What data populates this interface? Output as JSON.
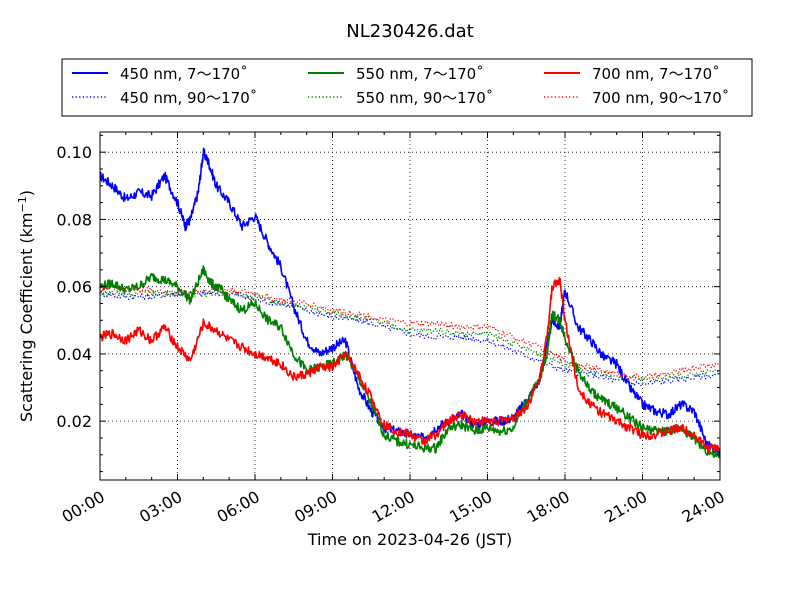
{
  "chart_data": {
    "type": "line",
    "title": "NL230426.dat",
    "xlabel": "Time on 2023-04-26 (JST)",
    "ylabel": "Scattering Coefficient (km",
    "ylabel_sup": "−1",
    "ylabel_close": ")",
    "x_unit": "hours from 00:00 JST",
    "xlim": [
      0,
      24
    ],
    "ylim": [
      0.0025,
      0.106
    ],
    "x_ticks": [
      0,
      3,
      6,
      9,
      12,
      15,
      18,
      21,
      24
    ],
    "x_tick_labels": [
      "00:00",
      "03:00",
      "06:00",
      "09:00",
      "12:00",
      "15:00",
      "18:00",
      "21:00",
      "24:00"
    ],
    "y_ticks": [
      0.02,
      0.04,
      0.06,
      0.08,
      0.1
    ],
    "y_tick_labels": [
      "0.02",
      "0.04",
      "0.06",
      "0.08",
      "0.10"
    ],
    "grid": true,
    "legend_placement": "top, above plot",
    "series": [
      {
        "name": "450 nm, 7～170˚",
        "color": "#0000ff",
        "style": "solid",
        "x": [
          0,
          0.5,
          1,
          1.5,
          2,
          2.5,
          3,
          3.3,
          3.5,
          3.8,
          4.0,
          4.2,
          4.5,
          5,
          5.5,
          6,
          6.5,
          7,
          7.5,
          8,
          8.5,
          9,
          9.5,
          10,
          10.5,
          11,
          11.5,
          12,
          12.5,
          13,
          13.5,
          14,
          14.5,
          15,
          15.5,
          16,
          16.5,
          17,
          17.3,
          17.5,
          17.8,
          18,
          18.5,
          19,
          19.5,
          20,
          20.5,
          21,
          21.5,
          22,
          22.5,
          23,
          23.5,
          24
        ],
        "y": [
          0.093,
          0.09,
          0.086,
          0.088,
          0.087,
          0.093,
          0.085,
          0.078,
          0.08,
          0.088,
          0.1,
          0.097,
          0.09,
          0.085,
          0.078,
          0.081,
          0.073,
          0.066,
          0.054,
          0.044,
          0.04,
          0.042,
          0.044,
          0.03,
          0.023,
          0.018,
          0.017,
          0.016,
          0.015,
          0.018,
          0.02,
          0.022,
          0.019,
          0.02,
          0.02,
          0.021,
          0.026,
          0.032,
          0.042,
          0.05,
          0.048,
          0.059,
          0.048,
          0.044,
          0.039,
          0.037,
          0.03,
          0.025,
          0.023,
          0.022,
          0.025,
          0.023,
          0.013,
          0.011
        ]
      },
      {
        "name": "450 nm, 90～170˚",
        "color": "#0000ff",
        "style": "dotted",
        "x": [
          0,
          1,
          2,
          3,
          4,
          5,
          6,
          7,
          8,
          9,
          10,
          11,
          12,
          13,
          14,
          15,
          16,
          17,
          18,
          19,
          20,
          21,
          22,
          23,
          24
        ],
        "y": [
          0.058,
          0.057,
          0.057,
          0.058,
          0.058,
          0.058,
          0.056,
          0.055,
          0.053,
          0.051,
          0.05,
          0.048,
          0.046,
          0.045,
          0.045,
          0.044,
          0.041,
          0.038,
          0.035,
          0.034,
          0.032,
          0.031,
          0.032,
          0.033,
          0.034
        ]
      },
      {
        "name": "550 nm, 7～170˚",
        "color": "#008000",
        "style": "solid",
        "x": [
          0,
          0.5,
          1,
          1.5,
          2,
          2.5,
          3,
          3.5,
          4.0,
          4.3,
          4.7,
          5,
          5.5,
          6,
          6.5,
          7,
          7.5,
          8,
          8.5,
          9,
          9.5,
          10,
          10.5,
          11,
          11.5,
          12,
          12.5,
          13,
          13.5,
          14,
          14.5,
          15,
          15.5,
          16,
          16.5,
          17,
          17.3,
          17.5,
          17.8,
          18,
          18.5,
          19,
          19.5,
          20,
          20.5,
          21,
          21.5,
          22,
          22.5,
          23,
          23.5,
          24
        ],
        "y": [
          0.06,
          0.061,
          0.059,
          0.06,
          0.063,
          0.062,
          0.06,
          0.056,
          0.065,
          0.061,
          0.059,
          0.056,
          0.053,
          0.055,
          0.05,
          0.048,
          0.04,
          0.035,
          0.036,
          0.037,
          0.04,
          0.033,
          0.025,
          0.016,
          0.014,
          0.013,
          0.012,
          0.012,
          0.018,
          0.019,
          0.017,
          0.018,
          0.017,
          0.018,
          0.026,
          0.032,
          0.04,
          0.052,
          0.05,
          0.045,
          0.035,
          0.029,
          0.026,
          0.024,
          0.021,
          0.018,
          0.017,
          0.017,
          0.018,
          0.015,
          0.011,
          0.009
        ]
      },
      {
        "name": "550 nm, 90～170˚",
        "color": "#008000",
        "style": "dotted",
        "x": [
          0,
          1,
          2,
          3,
          4,
          5,
          6,
          7,
          8,
          9,
          10,
          11,
          12,
          13,
          14,
          15,
          16,
          17,
          18,
          19,
          20,
          21,
          22,
          23,
          24
        ],
        "y": [
          0.058,
          0.058,
          0.058,
          0.058,
          0.058,
          0.058,
          0.057,
          0.055,
          0.054,
          0.052,
          0.051,
          0.049,
          0.047,
          0.047,
          0.046,
          0.046,
          0.043,
          0.04,
          0.037,
          0.035,
          0.033,
          0.032,
          0.033,
          0.034,
          0.035
        ]
      },
      {
        "name": "700 nm, 7～170˚",
        "color": "#ff0000",
        "style": "solid",
        "x": [
          0,
          0.5,
          1,
          1.5,
          2,
          2.5,
          3,
          3.5,
          4.0,
          4.5,
          5,
          5.5,
          6,
          6.5,
          7,
          7.5,
          8,
          8.5,
          9,
          9.5,
          10,
          10.5,
          11,
          11.5,
          12,
          12.5,
          13,
          13.5,
          14,
          14.5,
          15,
          15.5,
          16,
          16.5,
          17,
          17.3,
          17.5,
          17.8,
          18,
          18.5,
          19,
          19.5,
          20,
          20.5,
          21,
          21.5,
          22,
          22.5,
          23,
          23.5,
          24
        ],
        "y": [
          0.045,
          0.046,
          0.044,
          0.047,
          0.044,
          0.048,
          0.042,
          0.038,
          0.049,
          0.047,
          0.044,
          0.042,
          0.04,
          0.039,
          0.037,
          0.033,
          0.034,
          0.036,
          0.036,
          0.04,
          0.034,
          0.027,
          0.019,
          0.017,
          0.016,
          0.014,
          0.016,
          0.02,
          0.022,
          0.02,
          0.02,
          0.02,
          0.021,
          0.024,
          0.032,
          0.045,
          0.06,
          0.062,
          0.05,
          0.03,
          0.025,
          0.022,
          0.02,
          0.018,
          0.016,
          0.016,
          0.017,
          0.018,
          0.016,
          0.012,
          0.012
        ]
      },
      {
        "name": "700 nm, 90～170˚",
        "color": "#ff0000",
        "style": "dotted",
        "x": [
          0,
          1,
          2,
          3,
          4,
          5,
          6,
          7,
          8,
          9,
          10,
          11,
          12,
          13,
          14,
          15,
          16,
          17,
          18,
          19,
          20,
          21,
          22,
          23,
          24
        ],
        "y": [
          0.059,
          0.059,
          0.059,
          0.058,
          0.059,
          0.059,
          0.058,
          0.056,
          0.055,
          0.053,
          0.052,
          0.05,
          0.049,
          0.049,
          0.048,
          0.048,
          0.045,
          0.042,
          0.038,
          0.036,
          0.034,
          0.033,
          0.034,
          0.036,
          0.037
        ]
      }
    ]
  }
}
